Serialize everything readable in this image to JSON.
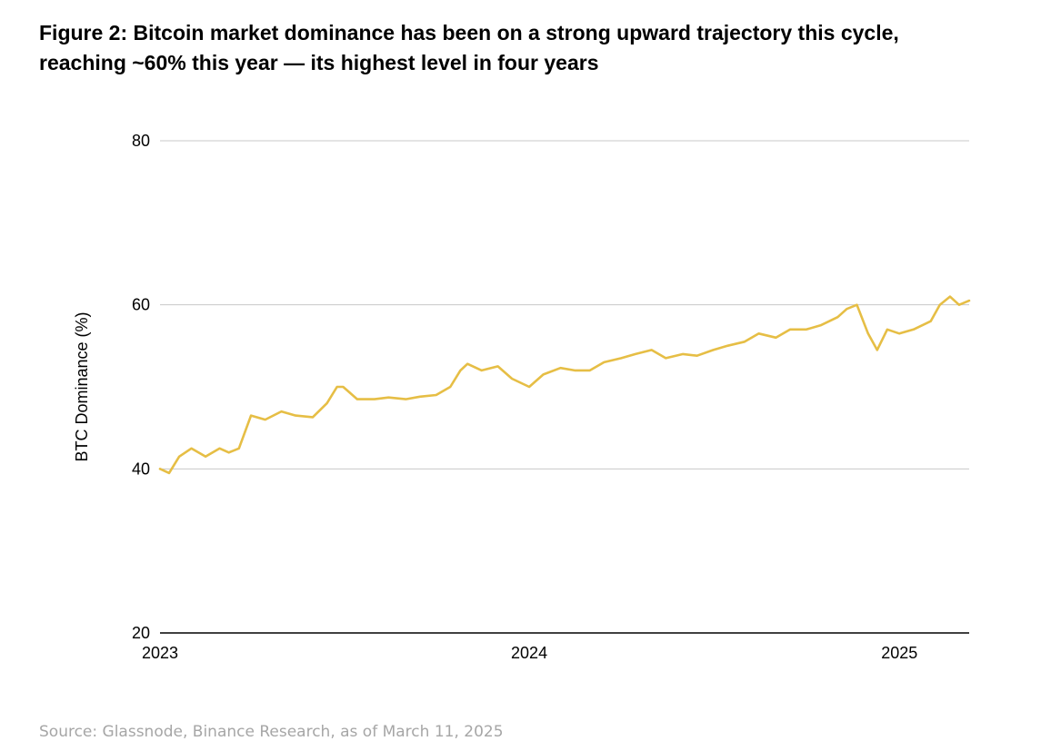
{
  "figure": {
    "title": "Figure 2: Bitcoin market dominance has been on a strong upward trajectory this cycle, reaching ~60% this year — its highest level in four years",
    "source": "Source: Glassnode, Binance Research, as of March 11, 2025"
  },
  "chart_data": {
    "type": "line",
    "title": "Figure 2: Bitcoin market dominance has been on a strong upward trajectory this cycle, reaching ~60% this year — its highest level in four years",
    "xlabel": "",
    "ylabel": "BTC Dominance (%)",
    "x_range": [
      "2023-01-01",
      "2025-03-11"
    ],
    "ylim": [
      20,
      80
    ],
    "yticks": [
      20,
      40,
      60,
      80
    ],
    "ytick_labels": [
      "20",
      "40",
      "60",
      "80"
    ],
    "xticks": [
      "2023-01-01",
      "2024-01-01",
      "2025-01-01"
    ],
    "xtick_labels": [
      "2023",
      "2024",
      "2025"
    ],
    "grid": true,
    "legend": "none",
    "series": [
      {
        "color": "#E6BE45",
        "x": [
          "2023-01-01",
          "2023-01-10",
          "2023-01-20",
          "2023-02-01",
          "2023-02-15",
          "2023-03-01",
          "2023-03-10",
          "2023-03-20",
          "2023-04-01",
          "2023-04-15",
          "2023-05-01",
          "2023-05-15",
          "2023-06-01",
          "2023-06-15",
          "2023-06-25",
          "2023-07-01",
          "2023-07-15",
          "2023-08-01",
          "2023-08-15",
          "2023-09-01",
          "2023-09-15",
          "2023-10-01",
          "2023-10-15",
          "2023-10-25",
          "2023-11-01",
          "2023-11-15",
          "2023-12-01",
          "2023-12-15",
          "2024-01-01",
          "2024-01-15",
          "2024-02-01",
          "2024-02-15",
          "2024-03-01",
          "2024-03-15",
          "2024-04-01",
          "2024-04-15",
          "2024-05-01",
          "2024-05-15",
          "2024-06-01",
          "2024-06-15",
          "2024-07-01",
          "2024-07-15",
          "2024-08-01",
          "2024-08-15",
          "2024-09-01",
          "2024-09-15",
          "2024-10-01",
          "2024-10-15",
          "2024-11-01",
          "2024-11-10",
          "2024-11-20",
          "2024-12-01",
          "2024-12-10",
          "2024-12-20",
          "2025-01-01",
          "2025-01-15",
          "2025-02-01",
          "2025-02-10",
          "2025-02-20",
          "2025-03-01",
          "2025-03-11"
        ],
        "values": [
          40.0,
          39.5,
          41.5,
          42.5,
          41.5,
          42.5,
          42.0,
          42.5,
          46.5,
          46.0,
          47.0,
          46.5,
          46.3,
          48.0,
          50.0,
          50.0,
          48.5,
          48.5,
          48.7,
          48.5,
          48.8,
          49.0,
          50.0,
          52.0,
          52.8,
          52.0,
          52.5,
          51.0,
          50.0,
          51.5,
          52.3,
          52.0,
          52.0,
          53.0,
          53.5,
          54.0,
          54.5,
          53.5,
          54.0,
          53.8,
          54.5,
          55.0,
          55.5,
          56.5,
          56.0,
          57.0,
          57.0,
          57.5,
          58.5,
          59.5,
          60.0,
          56.5,
          54.5,
          57.0,
          56.5,
          57.0,
          58.0,
          60.0,
          61.0,
          60.0,
          60.5
        ]
      }
    ]
  }
}
